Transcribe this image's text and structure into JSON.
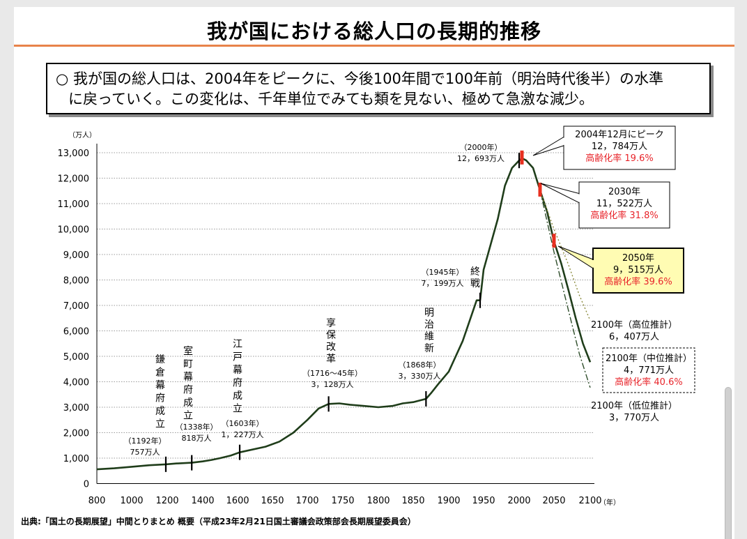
{
  "page": {
    "title": "我が国における総人口の長期的推移",
    "summary_line1": "○  我が国の総人口は、2004年をピークに、今後100年間で100年前（明治時代後半）の水準",
    "summary_line2": "に戻っていく。この変化は、千年単位でみても類を見ない、極めて急激な減少。",
    "source": "出典:「国土の長期展望」中間とりまとめ  概要（平成23年2月21日国土審議会政策部会長期展望委員会）"
  },
  "colors": {
    "title_rule": "#e8834a",
    "main_line": "#1f3d1a",
    "high_line": "#8a8a3c",
    "low_line": "#2e4d2a",
    "marker_red": "#e83020",
    "highlight_fill": "#fffcb3",
    "rate_text": "#e8242a"
  },
  "chart_data": {
    "type": "line",
    "y_unit": "（万人）",
    "x_unit": "（年）",
    "xlim": [
      800,
      2100
    ],
    "ylim": [
      0,
      13000
    ],
    "x_ticks": [
      "800",
      "1000",
      "1200",
      "1400",
      "1600",
      "1650",
      "1700",
      "1750",
      "1800",
      "1850",
      "1900",
      "1950",
      "2000",
      "2050",
      "2100"
    ],
    "x_tick_years": [
      800,
      1000,
      1200,
      1400,
      1600,
      1650,
      1700,
      1750,
      1800,
      1850,
      1900,
      1950,
      2000,
      2050,
      2100
    ],
    "y_ticks": [
      "0",
      "1,000",
      "2,000",
      "3,000",
      "4,000",
      "5,000",
      "6,000",
      "7,000",
      "8,000",
      "9,000",
      "10,000",
      "11,000",
      "12,000",
      "13,000"
    ],
    "y_tick_values": [
      0,
      1000,
      2000,
      3000,
      4000,
      5000,
      6000,
      7000,
      8000,
      9000,
      10000,
      11000,
      12000,
      13000
    ],
    "grid": "horizontal dotted",
    "series": [
      {
        "key": "main",
        "points": [
          [
            800,
            560
          ],
          [
            900,
            600
          ],
          [
            1000,
            660
          ],
          [
            1100,
            720
          ],
          [
            1192,
            757
          ],
          [
            1250,
            790
          ],
          [
            1338,
            818
          ],
          [
            1400,
            870
          ],
          [
            1450,
            930
          ],
          [
            1500,
            1000
          ],
          [
            1560,
            1100
          ],
          [
            1603,
            1227
          ],
          [
            1640,
            1450
          ],
          [
            1660,
            1650
          ],
          [
            1680,
            2000
          ],
          [
            1700,
            2500
          ],
          [
            1716,
            2950
          ],
          [
            1730,
            3128
          ],
          [
            1745,
            3150
          ],
          [
            1760,
            3100
          ],
          [
            1780,
            3050
          ],
          [
            1800,
            3000
          ],
          [
            1820,
            3050
          ],
          [
            1835,
            3150
          ],
          [
            1850,
            3200
          ],
          [
            1868,
            3330
          ],
          [
            1875,
            3550
          ],
          [
            1885,
            3900
          ],
          [
            1900,
            4400
          ],
          [
            1910,
            5000
          ],
          [
            1920,
            5600
          ],
          [
            1930,
            6400
          ],
          [
            1940,
            7200
          ],
          [
            1945,
            7199
          ],
          [
            1950,
            8400
          ],
          [
            1960,
            9400
          ],
          [
            1970,
            10400
          ],
          [
            1980,
            11700
          ],
          [
            1990,
            12400
          ],
          [
            2000,
            12693
          ],
          [
            2004,
            12784
          ],
          [
            2010,
            12700
          ],
          [
            2020,
            12400
          ],
          [
            2030,
            11522
          ],
          [
            2040,
            10700
          ],
          [
            2050,
            9515
          ],
          [
            2060,
            8650
          ],
          [
            2070,
            7600
          ],
          [
            2080,
            6500
          ],
          [
            2090,
            5500
          ],
          [
            2100,
            4771
          ]
        ]
      },
      {
        "key": "high",
        "style": "dotted",
        "points": [
          [
            2030,
            11522
          ],
          [
            2050,
            10000
          ],
          [
            2070,
            8600
          ],
          [
            2085,
            7400
          ],
          [
            2100,
            6407
          ]
        ]
      },
      {
        "key": "low",
        "style": "dash-dot",
        "points": [
          [
            2030,
            11522
          ],
          [
            2050,
            9100
          ],
          [
            2070,
            6800
          ],
          [
            2085,
            5100
          ],
          [
            2100,
            3770
          ]
        ]
      }
    ],
    "tick_marks": [
      1192,
      1338,
      1603,
      1730,
      1868,
      1945,
      2000
    ],
    "red_markers": [
      2004,
      2030,
      2050
    ],
    "annotations": [
      {
        "lines": [
          "鎌",
          "倉",
          "幕",
          "府",
          "成",
          "立"
        ],
        "vertical": true
      },
      {
        "lines": [
          "（1192年）",
          "757万人"
        ]
      },
      {
        "lines": [
          "室",
          "町",
          "幕",
          "府",
          "成",
          "立"
        ],
        "vertical": true
      },
      {
        "lines": [
          "（1338年）",
          "818万人"
        ]
      },
      {
        "lines": [
          "江",
          "戸",
          "幕",
          "府",
          "成",
          "立"
        ],
        "vertical": true
      },
      {
        "lines": [
          "（1603年）",
          "1，227万人"
        ]
      },
      {
        "lines": [
          "享",
          "保",
          "改",
          "革"
        ],
        "vertical": true
      },
      {
        "lines": [
          "（1716〜45年）",
          "3，128万人"
        ]
      },
      {
        "lines": [
          "明",
          "治",
          "維",
          "新"
        ],
        "vertical": true
      },
      {
        "lines": [
          "（1868年）",
          "3，330万人"
        ]
      },
      {
        "lines": [
          "（1945年）",
          "7，199万人"
        ]
      },
      {
        "lines": [
          "終",
          "戦"
        ],
        "vertical": true
      },
      {
        "lines": [
          "（2000年）",
          "12，693万人"
        ]
      }
    ],
    "callouts": [
      {
        "lines": [
          "2004年12月にピーク",
          "12，784万人"
        ],
        "rate": "高齢化率 19.6%"
      },
      {
        "lines": [
          "2030年",
          "11，522万人"
        ],
        "rate": "高齢化率 31.8%"
      },
      {
        "lines": [
          "2050年",
          "9，515万人"
        ],
        "rate": "高齢化率 39.6%"
      },
      {
        "lines": [
          "2100年（高位推計）",
          "6，407万人"
        ]
      },
      {
        "lines": [
          "2100年（中位推計）",
          "4，771万人"
        ],
        "rate": "高齢化率 40.6%"
      },
      {
        "lines": [
          "2100年（低位推計）",
          "3，770万人"
        ]
      }
    ]
  }
}
